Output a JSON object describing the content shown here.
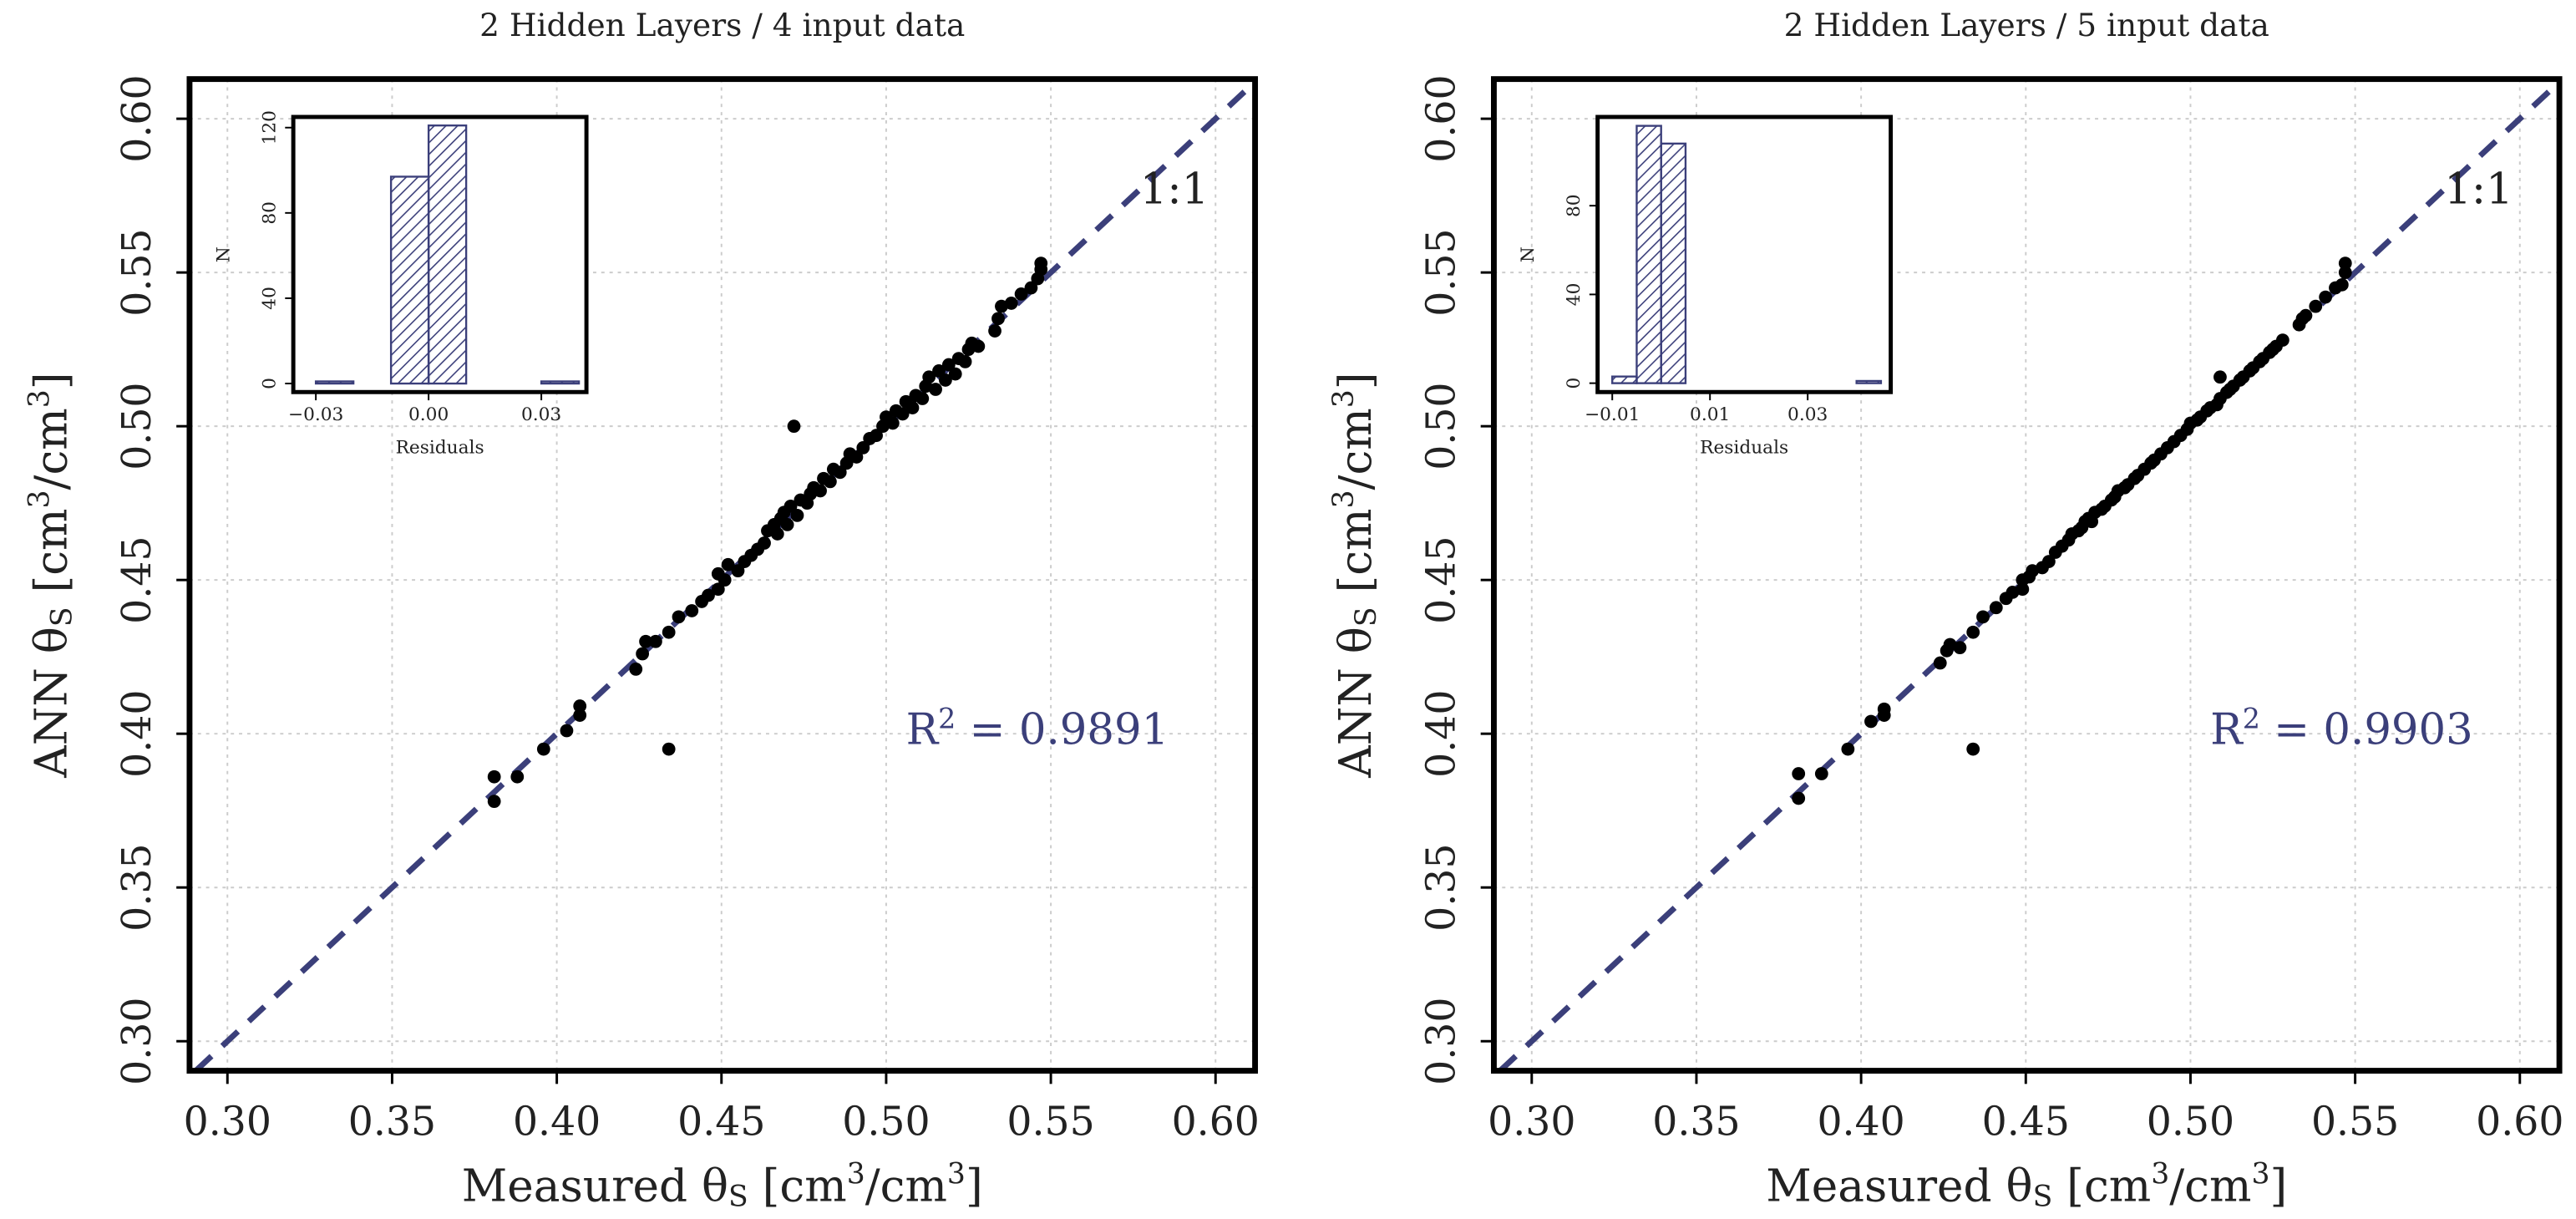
{
  "chart_data": [
    {
      "type": "scatter",
      "title": "2 Hidden Layers / 4 input data",
      "xlabel": [
        {
          "text": "Measured θ"
        },
        {
          "text": "S",
          "sub": true
        },
        {
          "text": " [cm"
        },
        {
          "text": "3",
          "sup": true
        },
        {
          "text": "/cm"
        },
        {
          "text": "3",
          "sup": true
        },
        {
          "text": "]"
        }
      ],
      "ylabel": [
        {
          "text": "ANN θ"
        },
        {
          "text": "S",
          "sub": true
        },
        {
          "text": " [cm"
        },
        {
          "text": "3",
          "sup": true
        },
        {
          "text": "/cm"
        },
        {
          "text": "3",
          "sup": true
        },
        {
          "text": "]"
        }
      ],
      "annotation": [
        {
          "text": "R"
        },
        {
          "text": "2",
          "sup": true
        },
        {
          "text": " = 0.9891"
        }
      ],
      "reference_label": "1:1",
      "reference_color": "#3b3f7a",
      "color": "#000000",
      "grid": true,
      "xlim": [
        0.2885,
        0.612
      ],
      "ylim": [
        0.2904,
        0.6129
      ],
      "xticks": [
        {
          "value": 0.3,
          "label": "0.30"
        },
        0.35,
        {
          "value": 0.4,
          "label": "0.40"
        },
        0.45,
        {
          "value": 0.5,
          "label": "0.50"
        },
        0.55,
        {
          "value": 0.6,
          "label": "0.60"
        }
      ],
      "yticks": [
        {
          "value": 0.3,
          "label": "0.30"
        },
        0.35,
        {
          "value": 0.4,
          "label": "0.40"
        },
        0.45,
        {
          "value": 0.5,
          "label": "0.50"
        },
        0.55,
        {
          "value": 0.6,
          "label": "0.60"
        }
      ],
      "x": [
        0.381,
        0.381,
        0.388,
        0.396,
        0.403,
        0.407,
        0.407,
        0.434,
        0.472,
        0.424,
        0.426,
        0.427,
        0.43,
        0.434,
        0.437,
        0.441,
        0.444,
        0.446,
        0.449,
        0.449,
        0.451,
        0.452,
        0.455,
        0.457,
        0.459,
        0.461,
        0.463,
        0.464,
        0.466,
        0.467,
        0.468,
        0.469,
        0.47,
        0.471,
        0.473,
        0.474,
        0.476,
        0.477,
        0.478,
        0.48,
        0.481,
        0.483,
        0.484,
        0.486,
        0.488,
        0.489,
        0.491,
        0.493,
        0.495,
        0.497,
        0.499,
        0.5,
        0.502,
        0.503,
        0.505,
        0.506,
        0.508,
        0.509,
        0.511,
        0.512,
        0.513,
        0.515,
        0.516,
        0.518,
        0.519,
        0.521,
        0.522,
        0.524,
        0.525,
        0.526,
        0.528,
        0.533,
        0.534,
        0.535,
        0.538,
        0.541,
        0.544,
        0.546,
        0.547,
        0.547
      ],
      "y": [
        0.386,
        0.378,
        0.386,
        0.395,
        0.401,
        0.406,
        0.409,
        0.395,
        0.5,
        0.421,
        0.426,
        0.43,
        0.43,
        0.433,
        0.438,
        0.44,
        0.443,
        0.445,
        0.447,
        0.452,
        0.45,
        0.455,
        0.453,
        0.456,
        0.458,
        0.46,
        0.462,
        0.466,
        0.468,
        0.465,
        0.47,
        0.472,
        0.468,
        0.474,
        0.471,
        0.476,
        0.475,
        0.478,
        0.48,
        0.479,
        0.483,
        0.482,
        0.486,
        0.485,
        0.488,
        0.491,
        0.49,
        0.493,
        0.496,
        0.497,
        0.5,
        0.503,
        0.501,
        0.505,
        0.504,
        0.508,
        0.506,
        0.51,
        0.509,
        0.513,
        0.516,
        0.512,
        0.518,
        0.515,
        0.52,
        0.517,
        0.522,
        0.521,
        0.525,
        0.527,
        0.526,
        0.531,
        0.535,
        0.539,
        0.54,
        0.543,
        0.545,
        0.548,
        0.551,
        0.553
      ],
      "inset": {
        "type": "histogram",
        "xlabel": "Residuals",
        "ylabel": "N",
        "color": "#3b3f7a",
        "bins": [
          -0.03,
          -0.02,
          -0.01,
          0,
          0.01,
          0.02,
          0.03,
          0.04
        ],
        "counts": [
          1,
          0,
          97,
          121,
          0,
          0,
          1
        ],
        "xlim": [
          -0.036,
          0.042
        ],
        "ylim": [
          -4,
          125
        ],
        "xticks": [
          {
            "value": -0.03,
            "label": "−0.03"
          },
          {
            "value": 0,
            "label": "0.00"
          },
          0.03
        ],
        "yticks": [
          0,
          40,
          80,
          120
        ]
      }
    },
    {
      "type": "scatter",
      "title": "2 Hidden Layers / 5 input data",
      "xlabel": [
        {
          "text": "Measured θ"
        },
        {
          "text": "S",
          "sub": true
        },
        {
          "text": " [cm"
        },
        {
          "text": "3",
          "sup": true
        },
        {
          "text": "/cm"
        },
        {
          "text": "3",
          "sup": true
        },
        {
          "text": "]"
        }
      ],
      "ylabel": [
        {
          "text": "ANN θ"
        },
        {
          "text": "S",
          "sub": true
        },
        {
          "text": " [cm"
        },
        {
          "text": "3",
          "sup": true
        },
        {
          "text": "/cm"
        },
        {
          "text": "3",
          "sup": true
        },
        {
          "text": "]"
        }
      ],
      "annotation": [
        {
          "text": "R"
        },
        {
          "text": "2",
          "sup": true
        },
        {
          "text": " = 0.9903"
        }
      ],
      "reference_label": "1:1",
      "reference_color": "#3b3f7a",
      "color": "#000000",
      "grid": true,
      "xlim": [
        0.2885,
        0.612
      ],
      "ylim": [
        0.2904,
        0.6129
      ],
      "xticks": [
        {
          "value": 0.3,
          "label": "0.30"
        },
        0.35,
        {
          "value": 0.4,
          "label": "0.40"
        },
        0.45,
        {
          "value": 0.5,
          "label": "0.50"
        },
        0.55,
        {
          "value": 0.6,
          "label": "0.60"
        }
      ],
      "yticks": [
        {
          "value": 0.3,
          "label": "0.30"
        },
        0.35,
        {
          "value": 0.4,
          "label": "0.40"
        },
        0.45,
        {
          "value": 0.5,
          "label": "0.50"
        },
        0.55,
        {
          "value": 0.6,
          "label": "0.60"
        }
      ],
      "x": [
        0.381,
        0.381,
        0.388,
        0.396,
        0.403,
        0.407,
        0.407,
        0.434,
        0.509,
        0.424,
        0.426,
        0.427,
        0.43,
        0.434,
        0.437,
        0.441,
        0.444,
        0.446,
        0.449,
        0.449,
        0.451,
        0.452,
        0.455,
        0.457,
        0.459,
        0.461,
        0.463,
        0.464,
        0.466,
        0.467,
        0.468,
        0.469,
        0.47,
        0.471,
        0.473,
        0.474,
        0.476,
        0.477,
        0.478,
        0.48,
        0.481,
        0.483,
        0.484,
        0.486,
        0.488,
        0.489,
        0.491,
        0.493,
        0.495,
        0.497,
        0.499,
        0.5,
        0.502,
        0.503,
        0.505,
        0.506,
        0.508,
        0.509,
        0.511,
        0.512,
        0.513,
        0.515,
        0.516,
        0.518,
        0.519,
        0.521,
        0.522,
        0.524,
        0.525,
        0.526,
        0.528,
        0.533,
        0.534,
        0.535,
        0.538,
        0.541,
        0.544,
        0.546,
        0.547,
        0.547
      ],
      "y": [
        0.387,
        0.379,
        0.387,
        0.395,
        0.404,
        0.406,
        0.408,
        0.395,
        0.516,
        0.423,
        0.427,
        0.429,
        0.428,
        0.433,
        0.438,
        0.441,
        0.444,
        0.446,
        0.447,
        0.45,
        0.451,
        0.453,
        0.454,
        0.456,
        0.459,
        0.461,
        0.463,
        0.465,
        0.466,
        0.467,
        0.469,
        0.47,
        0.469,
        0.472,
        0.473,
        0.474,
        0.476,
        0.477,
        0.479,
        0.48,
        0.481,
        0.483,
        0.484,
        0.486,
        0.488,
        0.489,
        0.491,
        0.493,
        0.495,
        0.497,
        0.499,
        0.501,
        0.502,
        0.503,
        0.505,
        0.506,
        0.507,
        0.509,
        0.511,
        0.512,
        0.513,
        0.515,
        0.516,
        0.518,
        0.519,
        0.521,
        0.522,
        0.524,
        0.525,
        0.526,
        0.528,
        0.533,
        0.535,
        0.536,
        0.539,
        0.542,
        0.545,
        0.546,
        0.55,
        0.553
      ],
      "inset": {
        "type": "histogram",
        "xlabel": "Residuals",
        "ylabel": "N",
        "color": "#3b3f7a",
        "bins": [
          -0.01,
          -0.005,
          0,
          0.005,
          0.01,
          0.015,
          0.02,
          0.025,
          0.03,
          0.035,
          0.04,
          0.045
        ],
        "counts": [
          3,
          116,
          108,
          0,
          0,
          0,
          0,
          0,
          0,
          0,
          1
        ],
        "xlim": [
          -0.013,
          0.047
        ],
        "ylim": [
          -4,
          120
        ],
        "xticks": [
          {
            "value": -0.01,
            "label": "−0.01"
          },
          0.01,
          0.03
        ],
        "yticks": [
          0,
          40,
          80
        ]
      }
    }
  ]
}
